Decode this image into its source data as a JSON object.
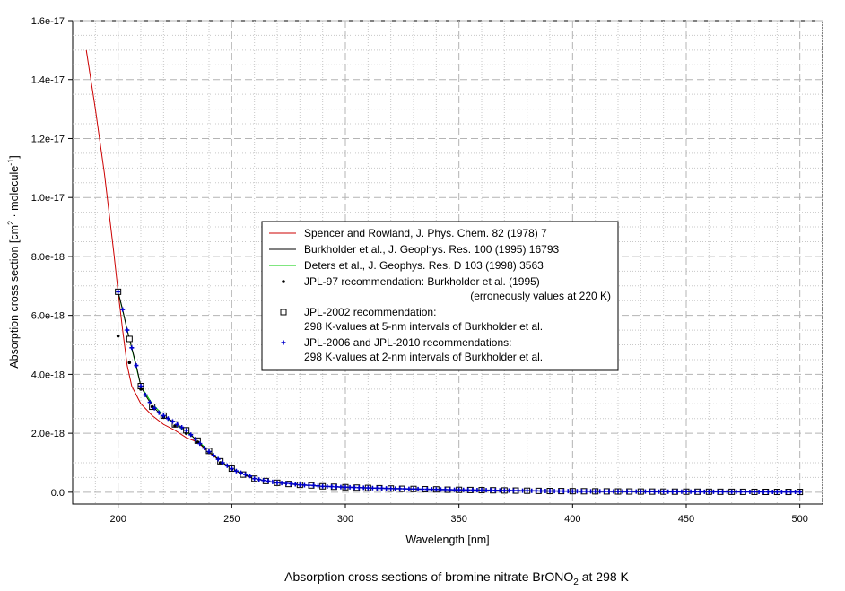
{
  "chart_data": {
    "type": "line",
    "title": "",
    "caption": {
      "prefix": "Absorption cross sections of bromine nitrate BrONO",
      "subscript": "2",
      "suffix": " at 298 K"
    },
    "xlabel": "Wavelength [nm]",
    "ylabel": {
      "main": "Absorption cross section [cm",
      "sup1": "2",
      "mid": " · molecule",
      "sup2": "-1",
      "end": "]"
    },
    "xlim": [
      180,
      510
    ],
    "ylim": [
      -4e-19,
      1.6e-17
    ],
    "x_ticks": [
      200,
      250,
      300,
      350,
      400,
      450,
      500
    ],
    "x_tick_labels": [
      "200",
      "250",
      "300",
      "350",
      "400",
      "450",
      "500"
    ],
    "y_ticks": [
      0,
      2e-18,
      4e-18,
      6e-18,
      8e-18,
      1e-17,
      1.2e-17,
      1.4e-17,
      1.6e-17
    ],
    "y_tick_labels": [
      "0.0",
      "2.0e-18",
      "4.0e-18",
      "6.0e-18",
      "8.0e-18",
      "1.0e-17",
      "1.2e-17",
      "1.4e-17",
      "1.6e-17"
    ],
    "grid": true,
    "legend_position": "center",
    "colors": {
      "spencer": "#cc0000",
      "burkholder": "#000000",
      "deters": "#00cc00",
      "jpl97": "#000000",
      "jpl2002": "#000000",
      "jpl2006": "#0000cc",
      "grid_major": "#b4b4b4",
      "grid_minor": "#c8c8c8"
    },
    "legend": [
      {
        "key": "spencer",
        "marker": "line",
        "lines": [
          "Spencer and Rowland, J. Phys. Chem. 82 (1978) 7"
        ]
      },
      {
        "key": "burkholder",
        "marker": "line",
        "lines": [
          "Burkholder et al., J. Geophys. Res. 100 (1995) 16793"
        ]
      },
      {
        "key": "deters",
        "marker": "line",
        "lines": [
          "Deters et al., J. Geophys. Res. D 103 (1998) 3563"
        ]
      },
      {
        "key": "jpl97",
        "marker": "dot",
        "lines": [
          "JPL-97 recommendation: Burkholder et al. (1995)",
          "(erroneously values at 220 K)"
        ]
      },
      {
        "key": "jpl2002",
        "marker": "square",
        "lines": [
          "JPL-2002 recommendation:",
          "298 K-values at 5-nm intervals of Burkholder et al."
        ]
      },
      {
        "key": "jpl2006",
        "marker": "plus",
        "lines": [
          "JPL-2006 and JPL-2010 recommendations:",
          "298 K-values at 2-nm intervals of Burkholder et al."
        ]
      }
    ],
    "series": [
      {
        "key": "spencer",
        "kind": "line",
        "x": [
          186,
          190,
          194,
          198,
          200,
          202,
          204,
          206,
          210,
          215,
          220,
          225,
          230,
          235,
          240,
          245,
          250,
          255,
          260
        ],
        "y": [
          1.5e-17,
          1.3e-17,
          1.08e-17,
          8.2e-18,
          6.8e-18,
          5.5e-18,
          4.3e-18,
          3.6e-18,
          3e-18,
          2.6e-18,
          2.3e-18,
          2.1e-18,
          1.85e-18,
          1.7e-18,
          1.35e-18,
          1.05e-18,
          8e-19,
          6e-19,
          4.5e-19
        ]
      },
      {
        "key": "burkholder",
        "kind": "line",
        "x": [
          200,
          202,
          204,
          206,
          208,
          210,
          212,
          214,
          216,
          218,
          220,
          222,
          224,
          226,
          228,
          230,
          232,
          234,
          236,
          238,
          240,
          242,
          244,
          246,
          248,
          250,
          255,
          260,
          265,
          270,
          275,
          280,
          285,
          290,
          300,
          310,
          320,
          330,
          340,
          350,
          360,
          370,
          380,
          390,
          400,
          410,
          420,
          430,
          440,
          450,
          460,
          470,
          480,
          490,
          500
        ],
        "y": [
          6.8e-18,
          6.2e-18,
          5.5e-18,
          4.9e-18,
          4.3e-18,
          3.6e-18,
          3.3e-18,
          3.05e-18,
          2.85e-18,
          2.7e-18,
          2.6e-18,
          2.5e-18,
          2.4e-18,
          2.3e-18,
          2.2e-18,
          2.1e-18,
          1.95e-18,
          1.8e-18,
          1.65e-18,
          1.5e-18,
          1.38e-18,
          1.25e-18,
          1.12e-18,
          1e-18,
          9e-19,
          8e-19,
          6e-19,
          4.6e-19,
          3.8e-19,
          3.2e-19,
          2.8e-19,
          2.5e-19,
          2.3e-19,
          2e-19,
          1.7e-19,
          1.45e-19,
          1.25e-19,
          1.1e-19,
          9.5e-20,
          8e-20,
          7e-20,
          6e-20,
          5e-20,
          4e-20,
          3.5e-20,
          3e-20,
          2.5e-20,
          2.2e-20,
          2e-20,
          1.8e-20,
          1.6e-20,
          1.4e-20,
          1.2e-20,
          1e-20,
          9e-21
        ]
      },
      {
        "key": "deters",
        "kind": "line",
        "x": [
          200,
          205,
          210,
          215,
          220,
          225,
          230,
          235,
          240,
          245,
          250,
          260,
          270,
          280,
          290,
          300,
          320,
          340,
          360,
          380,
          400,
          420,
          440,
          460,
          480,
          500
        ],
        "y": [
          6.8e-18,
          5.2e-18,
          3.6e-18,
          3e-18,
          2.6e-18,
          2.3e-18,
          2.05e-18,
          1.75e-18,
          1.4e-18,
          1.05e-18,
          8e-19,
          4.6e-19,
          3.2e-19,
          2.5e-19,
          2e-19,
          1.7e-19,
          1.25e-19,
          9.5e-20,
          7e-20,
          5e-20,
          3.5e-20,
          2.5e-20,
          2e-20,
          1.6e-20,
          1.2e-20,
          9e-21
        ]
      },
      {
        "key": "jpl97",
        "kind": "dot",
        "x": [
          200,
          205,
          210,
          215,
          220,
          225,
          230,
          235,
          240,
          245,
          250
        ],
        "y": [
          5.3e-18,
          4.4e-18,
          3.5e-18,
          2.9e-18,
          2.55e-18,
          2.25e-18,
          2e-18,
          1.7e-18,
          1.35e-18,
          1e-18,
          7.8e-19
        ]
      },
      {
        "key": "jpl2002",
        "kind": "square",
        "x": [
          200,
          205,
          210,
          215,
          220,
          225,
          230,
          235,
          240,
          245,
          250,
          255,
          260,
          265,
          270,
          275,
          280,
          285,
          290,
          295,
          300,
          305,
          310,
          315,
          320,
          325,
          330,
          335,
          340,
          345,
          350,
          355,
          360,
          365,
          370,
          375,
          380,
          385,
          390,
          395,
          400,
          405,
          410,
          415,
          420,
          425,
          430,
          435,
          440,
          445,
          450,
          455,
          460,
          465,
          470,
          475,
          480,
          485,
          490,
          495,
          500
        ],
        "y": [
          6.8e-18,
          5.2e-18,
          3.6e-18,
          2.9e-18,
          2.6e-18,
          2.3e-18,
          2.1e-18,
          1.75e-18,
          1.4e-18,
          1.05e-18,
          8e-19,
          6e-19,
          4.6e-19,
          3.8e-19,
          3.2e-19,
          2.8e-19,
          2.5e-19,
          2.3e-19,
          2e-19,
          1.85e-19,
          1.7e-19,
          1.55e-19,
          1.45e-19,
          1.35e-19,
          1.25e-19,
          1.15e-19,
          1.1e-19,
          1e-19,
          9.5e-20,
          8.5e-20,
          8e-20,
          7.5e-20,
          7e-20,
          6.5e-20,
          6e-20,
          5.5e-20,
          5e-20,
          4.5e-20,
          4e-20,
          3.8e-20,
          3.5e-20,
          3.2e-20,
          3e-20,
          2.8e-20,
          2.5e-20,
          2.4e-20,
          2.2e-20,
          2.1e-20,
          2e-20,
          1.9e-20,
          1.8e-20,
          1.7e-20,
          1.6e-20,
          1.5e-20,
          1.4e-20,
          1.3e-20,
          1.2e-20,
          1.1e-20,
          1e-20,
          9.5e-21,
          9e-21
        ]
      },
      {
        "key": "jpl2006",
        "kind": "plus",
        "x": [
          200,
          202,
          204,
          206,
          208,
          210,
          212,
          214,
          216,
          218,
          220,
          222,
          224,
          226,
          228,
          230,
          232,
          234,
          236,
          238,
          240,
          242,
          244,
          246,
          248,
          250,
          252,
          254,
          256,
          258,
          260,
          262,
          264,
          266,
          268,
          270,
          272,
          274,
          276,
          278,
          280,
          282,
          284,
          286,
          288,
          290,
          292,
          294,
          296,
          298,
          300,
          302,
          304,
          306,
          308,
          310,
          312,
          314,
          316,
          318,
          320,
          322,
          324,
          326,
          328,
          330,
          332,
          334,
          336,
          338,
          340,
          342,
          344,
          346,
          348,
          350,
          352,
          354,
          356,
          358,
          360,
          362,
          364,
          366,
          368,
          370,
          372,
          374,
          376,
          378,
          380,
          382,
          384,
          386,
          388,
          390,
          392,
          394,
          396,
          398,
          400,
          402,
          404,
          406,
          408,
          410,
          412,
          414,
          416,
          418,
          420,
          422,
          424,
          426,
          428,
          430,
          432,
          434,
          436,
          438,
          440,
          442,
          444,
          446,
          448,
          450,
          452,
          454,
          456,
          458,
          460,
          462,
          464,
          466,
          468,
          470,
          472,
          474,
          476,
          478,
          480,
          482,
          484,
          486,
          488,
          490,
          492,
          494,
          496,
          498,
          500
        ],
        "y": [
          6.8e-18,
          6.2e-18,
          5.5e-18,
          4.9e-18,
          4.3e-18,
          3.6e-18,
          3.3e-18,
          3.05e-18,
          2.85e-18,
          2.7e-18,
          2.6e-18,
          2.5e-18,
          2.4e-18,
          2.3e-18,
          2.2e-18,
          2.1e-18,
          1.95e-18,
          1.8e-18,
          1.65e-18,
          1.5e-18,
          1.38e-18,
          1.25e-18,
          1.12e-18,
          1e-18,
          9e-19,
          8e-19,
          7.2e-19,
          6.6e-19,
          6e-19,
          5.5e-19,
          4.6e-19,
          4.3e-19,
          4e-19,
          3.8e-19,
          3.5e-19,
          3.2e-19,
          3.1e-19,
          3e-19,
          2.9e-19,
          2.7e-19,
          2.5e-19,
          2.4e-19,
          2.35e-19,
          2.3e-19,
          2.15e-19,
          2e-19,
          1.95e-19,
          1.9e-19,
          1.85e-19,
          1.75e-19,
          1.7e-19,
          1.65e-19,
          1.6e-19,
          1.55e-19,
          1.5e-19,
          1.45e-19,
          1.4e-19,
          1.38e-19,
          1.35e-19,
          1.3e-19,
          1.25e-19,
          1.2e-19,
          1.18e-19,
          1.15e-19,
          1.12e-19,
          1.1e-19,
          1.05e-19,
          1.02e-19,
          1e-19,
          9.8e-20,
          9.5e-20,
          9e-20,
          8.8e-20,
          8.5e-20,
          8.2e-20,
          8e-20,
          7.8e-20,
          7.5e-20,
          7.3e-20,
          7.1e-20,
          7e-20,
          6.8e-20,
          6.6e-20,
          6.4e-20,
          6.2e-20,
          6e-20,
          5.8e-20,
          5.6e-20,
          5.4e-20,
          5.2e-20,
          5e-20,
          4.8e-20,
          4.6e-20,
          4.4e-20,
          4.2e-20,
          4e-20,
          3.9e-20,
          3.8e-20,
          3.7e-20,
          3.6e-20,
          3.5e-20,
          3.4e-20,
          3.3e-20,
          3.2e-20,
          3.1e-20,
          3e-20,
          2.9e-20,
          2.8e-20,
          2.7e-20,
          2.6e-20,
          2.5e-20,
          2.45e-20,
          2.4e-20,
          2.35e-20,
          2.3e-20,
          2.2e-20,
          2.15e-20,
          2.1e-20,
          2.05e-20,
          2.02e-20,
          2e-20,
          1.95e-20,
          1.9e-20,
          1.88e-20,
          1.85e-20,
          1.8e-20,
          1.75e-20,
          1.7e-20,
          1.65e-20,
          1.62e-20,
          1.6e-20,
          1.55e-20,
          1.5e-20,
          1.45e-20,
          1.42e-20,
          1.4e-20,
          1.35e-20,
          1.3e-20,
          1.25e-20,
          1.22e-20,
          1.2e-20,
          1.15e-20,
          1.1e-20,
          1.05e-20,
          1.02e-20,
          1e-20,
          9.8e-21,
          9.5e-21,
          9.3e-21,
          9.1e-21,
          9e-21
        ]
      }
    ]
  }
}
